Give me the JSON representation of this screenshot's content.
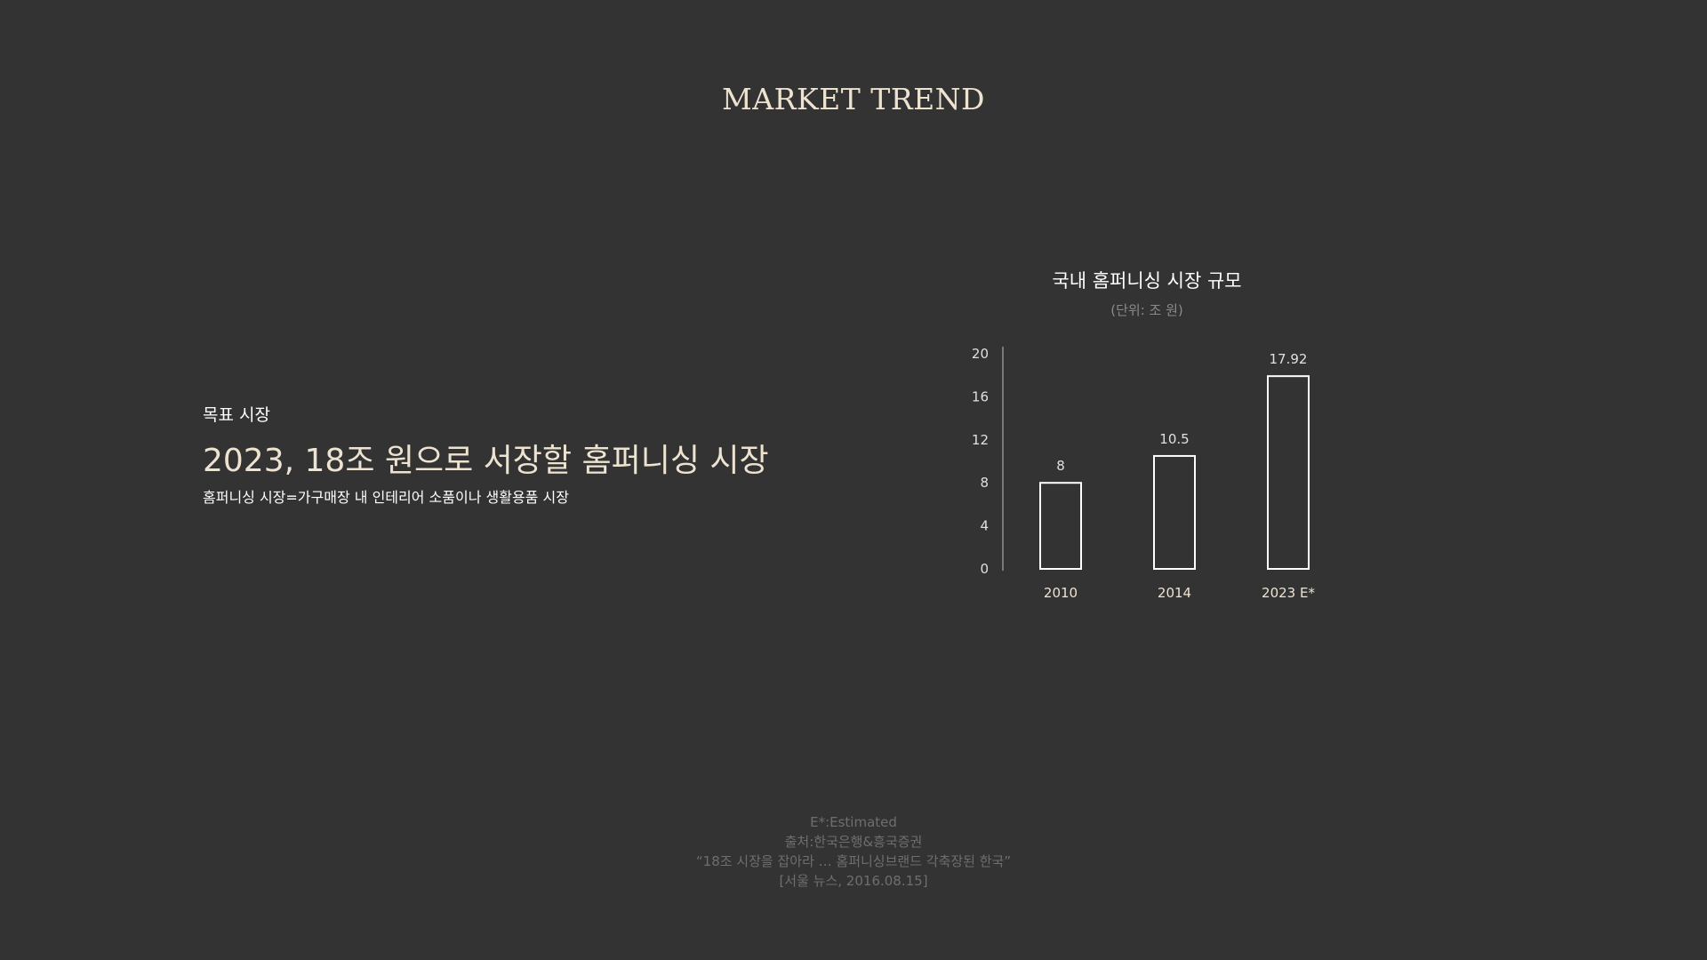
{
  "header": {
    "title": "MARKET TREND"
  },
  "left": {
    "section_label": "목표 시장",
    "headline": "2023, 18조 원으로 서장할 홈퍼니싱 시장",
    "description": "홈퍼니싱 시장=가구매장 내 인테리어 소품이나 생활용품 시장"
  },
  "chart_data": {
    "type": "bar",
    "title": "국내 홈퍼니싱 시장 규모",
    "unit_label": "(단위: 조 원)",
    "categories": [
      "2010",
      "2014",
      "2023 E*"
    ],
    "values": [
      8,
      10.5,
      17.92
    ],
    "value_labels": [
      "8",
      "10.5",
      "17.92"
    ],
    "yticks": [
      "0",
      "4",
      "8",
      "12",
      "16",
      "20"
    ],
    "ylim": [
      0,
      20
    ],
    "grid": false,
    "bar_style": "outline",
    "colors": {
      "bar_stroke": "#ffffff",
      "axis": "#bdbdbd",
      "tick_label": "#e0e0e0",
      "value_label": "#e0e0e0",
      "category_label": "#eee3d0"
    }
  },
  "footer": {
    "line1": "E*:Estimated",
    "line2": "출처:한국은행&흥국증권",
    "line3": "“18조 시장을 잡아라 … 홈퍼니싱브랜드 각축장된 한국”",
    "line4": "[서울 뉴스, 2016.08.15]"
  },
  "colors": {
    "background": "#333333",
    "accent_text": "#eee3d0",
    "footer_text": "#6e6e6e"
  }
}
